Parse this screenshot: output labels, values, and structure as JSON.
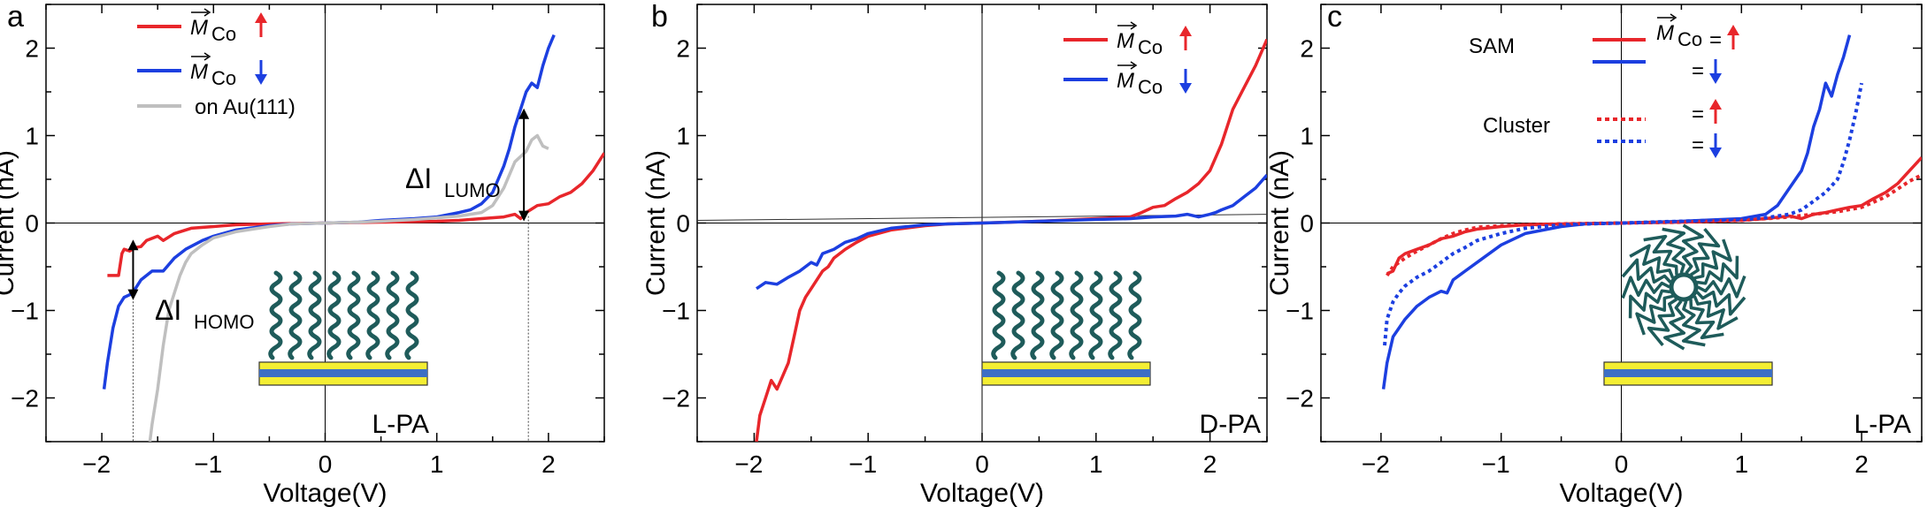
{
  "colors": {
    "up": "#e8262b",
    "down": "#1c3fe0",
    "au": "#bfbfbf",
    "axis": "#000000",
    "chain": "#1e5b5a",
    "substrate_yellow": "#f4ee33",
    "substrate_blue": "#3d6fc4"
  },
  "chart_data": [
    {
      "panel": "a",
      "type": "line",
      "xlabel": "Voltage(V)",
      "ylabel": "Current (nA)",
      "xlim": [
        -2.5,
        2.5
      ],
      "ylim": [
        -2.5,
        2.5
      ],
      "xticks": [
        -2,
        -1,
        0,
        1,
        2
      ],
      "yticks": [
        -2,
        -1,
        0,
        1,
        2
      ],
      "legend": [
        {
          "label_main": "M",
          "label_sub": "Co",
          "arrow": "up",
          "series": 0
        },
        {
          "label_main": "M",
          "label_sub": "Co",
          "arrow": "down",
          "series": 1
        },
        {
          "label": "on Au(111)",
          "series": 2
        }
      ],
      "annotations": [
        {
          "label_main": "ΔI",
          "label_sub": "LUMO",
          "x": 1.78,
          "y_from": 0.08,
          "y_to": 1.25
        },
        {
          "label_main": "ΔI",
          "label_sub": "HOMO",
          "x": -1.72,
          "y_from": -0.25,
          "y_to": -0.82
        }
      ],
      "molecule_label": "L-PA",
      "molecule_type": "sam",
      "series": [
        {
          "name": "M_Co up",
          "color": "up",
          "style": "solid",
          "x": [
            -1.95,
            -1.85,
            -1.82,
            -1.8,
            -1.75,
            -1.7,
            -1.65,
            -1.6,
            -1.5,
            -1.45,
            -1.35,
            -1.3,
            -1.2,
            -1.0,
            -0.8,
            -0.5,
            0,
            0.5,
            1.0,
            1.2,
            1.4,
            1.6,
            1.7,
            1.75,
            1.8,
            1.9,
            2.0,
            2.1,
            2.2,
            2.3,
            2.4,
            2.45,
            2.5
          ],
          "y": [
            -0.6,
            -0.6,
            -0.35,
            -0.3,
            -0.32,
            -0.28,
            -0.27,
            -0.2,
            -0.15,
            -0.2,
            -0.12,
            -0.1,
            -0.06,
            -0.04,
            -0.02,
            -0.01,
            0,
            0.01,
            0.02,
            0.03,
            0.05,
            0.07,
            0.1,
            0.05,
            0.12,
            0.2,
            0.22,
            0.3,
            0.35,
            0.45,
            0.6,
            0.7,
            0.8
          ]
        },
        {
          "name": "M_Co down",
          "color": "down",
          "style": "solid",
          "x": [
            -1.98,
            -1.95,
            -1.9,
            -1.85,
            -1.8,
            -1.75,
            -1.7,
            -1.65,
            -1.55,
            -1.45,
            -1.35,
            -1.25,
            -1.1,
            -1.0,
            -0.8,
            -0.5,
            -0.3,
            0,
            0.3,
            0.5,
            0.8,
            1.0,
            1.2,
            1.3,
            1.4,
            1.5,
            1.55,
            1.6,
            1.65,
            1.7,
            1.8,
            1.85,
            1.9,
            1.95,
            2.0,
            2.05
          ],
          "y": [
            -1.9,
            -1.6,
            -1.2,
            -0.95,
            -0.85,
            -0.82,
            -0.75,
            -0.65,
            -0.55,
            -0.55,
            -0.4,
            -0.3,
            -0.2,
            -0.15,
            -0.08,
            -0.03,
            -0.01,
            0,
            0.01,
            0.03,
            0.05,
            0.07,
            0.12,
            0.15,
            0.22,
            0.35,
            0.5,
            0.65,
            0.85,
            1.1,
            1.5,
            1.6,
            1.55,
            1.8,
            2.0,
            2.15
          ]
        },
        {
          "name": "on Au(111)",
          "color": "au",
          "style": "solid",
          "x": [
            -1.57,
            -1.55,
            -1.5,
            -1.45,
            -1.4,
            -1.35,
            -1.3,
            -1.25,
            -1.2,
            -1.1,
            -1.0,
            -0.8,
            -0.5,
            -0.3,
            0,
            0.3,
            0.5,
            0.8,
            1.0,
            1.2,
            1.4,
            1.5,
            1.6,
            1.7,
            1.8,
            1.85,
            1.9,
            1.95,
            2.0
          ],
          "y": [
            -2.5,
            -2.3,
            -1.9,
            -1.4,
            -1.0,
            -0.8,
            -0.6,
            -0.45,
            -0.35,
            -0.25,
            -0.17,
            -0.1,
            -0.04,
            -0.01,
            0,
            0.01,
            0.02,
            0.04,
            0.06,
            0.08,
            0.12,
            0.2,
            0.4,
            0.7,
            0.82,
            0.95,
            1.0,
            0.88,
            0.85
          ]
        }
      ]
    },
    {
      "panel": "b",
      "type": "line",
      "xlabel": "Voltage(V)",
      "ylabel": "Current (nA)",
      "xlim": [
        -2.5,
        2.5
      ],
      "ylim": [
        -2.5,
        2.5
      ],
      "xticks": [
        -2,
        -1,
        0,
        1,
        2
      ],
      "yticks": [
        -2,
        -1,
        0,
        1,
        2
      ],
      "legend": [
        {
          "label_main": "M",
          "label_sub": "Co",
          "arrow": "up",
          "series": 0
        },
        {
          "label_main": "M",
          "label_sub": "Co",
          "arrow": "down",
          "series": 1
        }
      ],
      "baseline": {
        "x": [
          -2.5,
          2.5
        ],
        "y": [
          0.03,
          0.1
        ]
      },
      "molecule_label": "D-PA",
      "molecule_type": "sam",
      "series": [
        {
          "name": "M_Co up",
          "color": "up",
          "style": "solid",
          "x": [
            -1.98,
            -1.95,
            -1.9,
            -1.85,
            -1.8,
            -1.75,
            -1.7,
            -1.65,
            -1.6,
            -1.55,
            -1.5,
            -1.45,
            -1.4,
            -1.35,
            -1.3,
            -1.2,
            -1.1,
            -1.0,
            -0.8,
            -0.5,
            -0.3,
            0,
            0.5,
            1.0,
            1.3,
            1.4,
            1.5,
            1.6,
            1.7,
            1.8,
            1.9,
            2.0,
            2.1,
            2.2,
            2.3,
            2.4,
            2.5
          ],
          "y": [
            -2.5,
            -2.2,
            -2.0,
            -1.8,
            -1.9,
            -1.75,
            -1.6,
            -1.3,
            -1.0,
            -0.85,
            -0.75,
            -0.65,
            -0.55,
            -0.5,
            -0.4,
            -0.3,
            -0.22,
            -0.15,
            -0.08,
            -0.03,
            -0.01,
            0,
            0.02,
            0.05,
            0.07,
            0.12,
            0.18,
            0.2,
            0.28,
            0.35,
            0.45,
            0.6,
            0.9,
            1.3,
            1.55,
            1.8,
            2.1
          ]
        },
        {
          "name": "M_Co down",
          "color": "down",
          "style": "solid",
          "x": [
            -1.98,
            -1.9,
            -1.8,
            -1.7,
            -1.6,
            -1.5,
            -1.45,
            -1.4,
            -1.3,
            -1.2,
            -1.1,
            -1.0,
            -0.8,
            -0.5,
            -0.3,
            0,
            0.5,
            1.0,
            1.3,
            1.5,
            1.7,
            1.8,
            1.9,
            2.0,
            2.05,
            2.1,
            2.2,
            2.3,
            2.4,
            2.5
          ],
          "y": [
            -0.75,
            -0.68,
            -0.7,
            -0.62,
            -0.55,
            -0.45,
            -0.48,
            -0.35,
            -0.3,
            -0.22,
            -0.18,
            -0.12,
            -0.06,
            -0.02,
            -0.01,
            0,
            0.02,
            0.04,
            0.05,
            0.07,
            0.08,
            0.1,
            0.07,
            0.1,
            0.12,
            0.15,
            0.2,
            0.3,
            0.4,
            0.55
          ]
        }
      ]
    },
    {
      "panel": "c",
      "type": "line",
      "xlabel": "Voltage(V)",
      "ylabel": "Current (nA)",
      "xlim": [
        -2.5,
        2.5
      ],
      "ylim": [
        -2.5,
        2.5
      ],
      "xticks": [
        -2,
        -1,
        0,
        1,
        2
      ],
      "yticks": [
        -2,
        -1,
        0,
        1,
        2
      ],
      "legend_groups": [
        {
          "label": "SAM",
          "style": "solid"
        },
        {
          "label": "Cluster",
          "style": "dotted"
        }
      ],
      "legend_header": {
        "label_main": "M",
        "label_sub": "Co",
        "eq": "="
      },
      "molecule_label": "L-PA",
      "molecule_type": "cluster",
      "series": [
        {
          "name": "SAM up",
          "color": "up",
          "style": "solid",
          "x": [
            -1.95,
            -1.9,
            -1.85,
            -1.8,
            -1.7,
            -1.6,
            -1.5,
            -1.4,
            -1.3,
            -1.2,
            -1.0,
            -0.8,
            -0.5,
            0,
            0.5,
            1.0,
            1.2,
            1.4,
            1.5,
            1.6,
            1.7,
            1.8,
            1.9,
            2.0,
            2.1,
            2.2,
            2.3,
            2.4,
            2.5
          ],
          "y": [
            -0.58,
            -0.55,
            -0.4,
            -0.35,
            -0.3,
            -0.25,
            -0.18,
            -0.15,
            -0.1,
            -0.07,
            -0.04,
            -0.02,
            -0.01,
            0,
            0.01,
            0.03,
            0.05,
            0.08,
            0.05,
            0.1,
            0.12,
            0.15,
            0.18,
            0.2,
            0.28,
            0.35,
            0.45,
            0.6,
            0.75
          ]
        },
        {
          "name": "SAM down",
          "color": "down",
          "style": "solid",
          "x": [
            -1.98,
            -1.95,
            -1.9,
            -1.8,
            -1.7,
            -1.6,
            -1.5,
            -1.45,
            -1.4,
            -1.3,
            -1.2,
            -1.0,
            -0.8,
            -0.5,
            -0.3,
            0,
            0.5,
            1.0,
            1.2,
            1.3,
            1.4,
            1.5,
            1.55,
            1.6,
            1.65,
            1.7,
            1.75,
            1.8,
            1.85,
            1.9
          ],
          "y": [
            -1.9,
            -1.6,
            -1.3,
            -1.1,
            -0.95,
            -0.85,
            -0.78,
            -0.8,
            -0.65,
            -0.55,
            -0.45,
            -0.25,
            -0.12,
            -0.04,
            -0.01,
            0,
            0.02,
            0.05,
            0.1,
            0.2,
            0.4,
            0.6,
            0.8,
            1.1,
            1.3,
            1.6,
            1.45,
            1.7,
            1.9,
            2.15
          ]
        },
        {
          "name": "Cluster up",
          "color": "up",
          "style": "dotted",
          "x": [
            -1.95,
            -1.9,
            -1.8,
            -1.7,
            -1.6,
            -1.5,
            -1.4,
            -1.3,
            -1.2,
            -1.0,
            -0.8,
            -0.5,
            0,
            0.5,
            1.0,
            1.2,
            1.4,
            1.6,
            1.8,
            2.0,
            2.2,
            2.4,
            2.5
          ],
          "y": [
            -0.6,
            -0.5,
            -0.4,
            -0.32,
            -0.25,
            -0.18,
            -0.12,
            -0.08,
            -0.05,
            -0.03,
            -0.02,
            -0.01,
            0,
            0.01,
            0.03,
            0.05,
            0.07,
            0.1,
            0.13,
            0.18,
            0.3,
            0.48,
            0.55
          ]
        },
        {
          "name": "Cluster down",
          "color": "down",
          "style": "dotted",
          "x": [
            -1.97,
            -1.95,
            -1.9,
            -1.85,
            -1.8,
            -1.7,
            -1.6,
            -1.5,
            -1.4,
            -1.3,
            -1.2,
            -1.0,
            -0.8,
            -0.5,
            -0.3,
            0,
            0.5,
            1.0,
            1.2,
            1.4,
            1.5,
            1.6,
            1.7,
            1.8,
            1.85,
            1.9,
            1.95,
            2.0
          ],
          "y": [
            -1.4,
            -1.1,
            -0.9,
            -0.8,
            -0.72,
            -0.62,
            -0.55,
            -0.45,
            -0.35,
            -0.28,
            -0.2,
            -0.12,
            -0.06,
            -0.02,
            -0.01,
            0,
            0.02,
            0.04,
            0.06,
            0.1,
            0.15,
            0.25,
            0.35,
            0.5,
            0.7,
            0.95,
            1.25,
            1.6
          ]
        }
      ]
    }
  ]
}
